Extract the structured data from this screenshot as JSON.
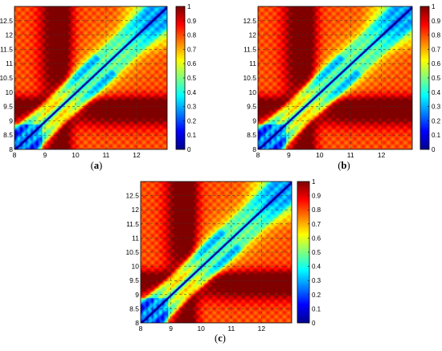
{
  "colormap": {
    "name": "jet",
    "stops": [
      "#00008f",
      "#0000ff",
      "#0080ff",
      "#00ffff",
      "#80ff80",
      "#ffff00",
      "#ff8000",
      "#ff0000",
      "#800000"
    ]
  },
  "chart_data": [
    {
      "panel": "a",
      "caption": "a",
      "type": "heatmap",
      "title": "",
      "xlabel": "",
      "ylabel": "",
      "xlim": [
        8,
        13
      ],
      "ylim": [
        8,
        13
      ],
      "x_ticks": [
        "8",
        "9",
        "10",
        "11",
        "12"
      ],
      "x_tick_values": [
        8,
        9,
        10,
        11,
        12
      ],
      "y_ticks": [
        "8",
        "8.5",
        "9",
        "9.5",
        "10",
        "10.5",
        "11",
        "11.5",
        "12",
        "12.5"
      ],
      "y_tick_values": [
        8,
        8.5,
        9,
        9.5,
        10,
        10.5,
        11,
        11.5,
        12,
        12.5
      ],
      "colorbar": {
        "range": [
          0,
          1
        ],
        "ticks": [
          "0",
          "0.1",
          "0.2",
          "0.3",
          "0.4",
          "0.5",
          "0.6",
          "0.7",
          "0.8",
          "0.9",
          "1"
        ],
        "tick_values": [
          0,
          0.1,
          0.2,
          0.3,
          0.4,
          0.5,
          0.6,
          0.7,
          0.8,
          0.9,
          1
        ]
      },
      "grid": "dashed",
      "description_values": "symmetric similarity matrix: value near 0 along diagonal, low-valued band near diagonal, high values (~0.8-0.9) in off-diagonal regions"
    },
    {
      "panel": "b",
      "caption": "b",
      "type": "heatmap",
      "title": "",
      "xlabel": "",
      "ylabel": "",
      "xlim": [
        8,
        13
      ],
      "ylim": [
        8,
        13
      ],
      "x_ticks": [
        "8",
        "9",
        "10",
        "11",
        "12"
      ],
      "x_tick_values": [
        8,
        9,
        10,
        11,
        12
      ],
      "y_ticks": [
        "8",
        "8.5",
        "9",
        "9.5",
        "10",
        "10.5",
        "11",
        "11.5",
        "12",
        "12.5"
      ],
      "y_tick_values": [
        8,
        8.5,
        9,
        9.5,
        10,
        10.5,
        11,
        11.5,
        12,
        12.5
      ],
      "colorbar": {
        "range": [
          0,
          1
        ],
        "ticks": [
          "0",
          "0.1",
          "0.2",
          "0.3",
          "0.4",
          "0.5",
          "0.6",
          "0.7",
          "0.8",
          "0.9",
          "1"
        ],
        "tick_values": [
          0,
          0.1,
          0.2,
          0.3,
          0.4,
          0.5,
          0.6,
          0.7,
          0.8,
          0.9,
          1
        ]
      },
      "grid": "dashed"
    },
    {
      "panel": "c",
      "caption": "c",
      "type": "heatmap",
      "title": "",
      "xlabel": "",
      "ylabel": "",
      "xlim": [
        8,
        13
      ],
      "ylim": [
        8,
        13
      ],
      "x_ticks": [
        "8",
        "9",
        "10",
        "11",
        "12"
      ],
      "x_tick_values": [
        8,
        9,
        10,
        11,
        12
      ],
      "y_ticks": [
        "8",
        "8.5",
        "9",
        "9.5",
        "10",
        "10.5",
        "11",
        "11.5",
        "12",
        "12.5"
      ],
      "y_tick_values": [
        8,
        8.5,
        9,
        9.5,
        10,
        10.5,
        11,
        11.5,
        12,
        12.5
      ],
      "colorbar": {
        "range": [
          0,
          1
        ],
        "ticks": [
          "0",
          "0.1",
          "0.2",
          "0.3",
          "0.4",
          "0.5",
          "0.6",
          "0.7",
          "0.8",
          "0.9",
          "1"
        ],
        "tick_values": [
          0,
          0.1,
          0.2,
          0.3,
          0.4,
          0.5,
          0.6,
          0.7,
          0.8,
          0.9,
          1
        ]
      },
      "grid": "dashed"
    }
  ]
}
